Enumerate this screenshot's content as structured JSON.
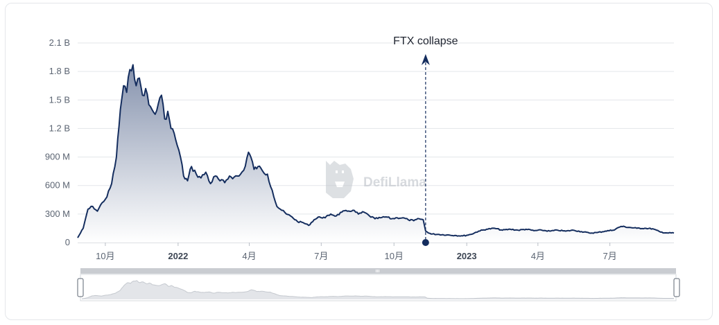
{
  "chart_data": {
    "type": "area",
    "y_ticks": [
      {
        "value": 0,
        "label": "0"
      },
      {
        "value": 300000000,
        "label": "300 M"
      },
      {
        "value": 600000000,
        "label": "600 M"
      },
      {
        "value": 900000000,
        "label": "900 M"
      },
      {
        "value": 1200000000,
        "label": "1.2 B"
      },
      {
        "value": 1500000000,
        "label": "1.5 B"
      },
      {
        "value": 1800000000,
        "label": "1.8 B"
      },
      {
        "value": 2100000000,
        "label": "2.1 B"
      }
    ],
    "x_ticks": [
      {
        "date": "2021-10-01",
        "label": "10月",
        "bold": false
      },
      {
        "date": "2022-01-01",
        "label": "2022",
        "bold": true
      },
      {
        "date": "2022-04-01",
        "label": "4月",
        "bold": false
      },
      {
        "date": "2022-07-01",
        "label": "7月",
        "bold": false
      },
      {
        "date": "2022-10-01",
        "label": "10月",
        "bold": false
      },
      {
        "date": "2023-01-01",
        "label": "2023",
        "bold": true
      },
      {
        "date": "2023-04-01",
        "label": "4月",
        "bold": false
      },
      {
        "date": "2023-07-01",
        "label": "7月",
        "bold": false
      }
    ],
    "x_range": [
      "2021-08-27",
      "2023-09-20"
    ],
    "ylim": [
      0,
      2100000000
    ],
    "grid": true,
    "line_color": "#142d5e",
    "fill_top_color": "#8592ad",
    "series": [
      {
        "x": [
          "2021-08-27",
          "2021-09-03",
          "2021-09-09",
          "2021-09-15",
          "2021-09-21",
          "2021-09-27",
          "2021-10-03",
          "2021-10-09",
          "2021-10-15",
          "2021-10-20",
          "2021-10-24",
          "2021-10-28",
          "2021-11-01",
          "2021-11-05",
          "2021-11-09",
          "2021-11-13",
          "2021-11-17",
          "2021-11-21",
          "2021-11-25",
          "2021-11-29",
          "2021-12-03",
          "2021-12-07",
          "2021-12-11",
          "2021-12-15",
          "2021-12-19",
          "2021-12-23",
          "2021-12-27",
          "2021-12-31",
          "2022-01-04",
          "2022-01-08",
          "2022-01-13",
          "2022-01-18",
          "2022-01-24",
          "2022-01-30",
          "2022-02-05",
          "2022-02-11",
          "2022-02-17",
          "2022-02-23",
          "2022-03-01",
          "2022-03-07",
          "2022-03-13",
          "2022-03-19",
          "2022-03-25",
          "2022-03-31",
          "2022-04-03",
          "2022-04-07",
          "2022-04-12",
          "2022-04-18",
          "2022-04-24",
          "2022-04-30",
          "2022-05-06",
          "2022-05-12",
          "2022-05-18",
          "2022-05-25",
          "2022-06-01",
          "2022-06-08",
          "2022-06-15",
          "2022-06-22",
          "2022-06-29",
          "2022-07-06",
          "2022-07-13",
          "2022-07-20",
          "2022-07-27",
          "2022-08-03",
          "2022-08-10",
          "2022-08-17",
          "2022-08-24",
          "2022-08-31",
          "2022-09-07",
          "2022-09-14",
          "2022-09-21",
          "2022-09-28",
          "2022-10-05",
          "2022-10-12",
          "2022-10-19",
          "2022-10-26",
          "2022-11-02",
          "2022-11-07",
          "2022-11-10",
          "2022-11-17",
          "2022-11-27",
          "2022-12-07",
          "2022-12-17",
          "2022-12-27",
          "2023-01-06",
          "2023-01-16",
          "2023-01-26",
          "2023-02-05",
          "2023-02-15",
          "2023-02-25",
          "2023-03-07",
          "2023-03-17",
          "2023-03-27",
          "2023-04-06",
          "2023-04-16",
          "2023-04-26",
          "2023-05-06",
          "2023-05-16",
          "2023-05-26",
          "2023-06-05",
          "2023-06-15",
          "2023-06-25",
          "2023-07-05",
          "2023-07-15",
          "2023-07-25",
          "2023-08-04",
          "2023-08-14",
          "2023-08-24",
          "2023-09-03",
          "2023-09-13",
          "2023-09-20"
        ],
        "values": [
          50000000,
          150000000,
          350000000,
          380000000,
          330000000,
          420000000,
          480000000,
          620000000,
          900000000,
          1400000000,
          1650000000,
          1580000000,
          1820000000,
          1870000000,
          1650000000,
          1730000000,
          1550000000,
          1620000000,
          1450000000,
          1400000000,
          1350000000,
          1460000000,
          1550000000,
          1300000000,
          1380000000,
          1200000000,
          1150000000,
          1020000000,
          900000000,
          700000000,
          650000000,
          800000000,
          720000000,
          680000000,
          740000000,
          620000000,
          700000000,
          650000000,
          630000000,
          700000000,
          690000000,
          700000000,
          760000000,
          950000000,
          900000000,
          770000000,
          800000000,
          750000000,
          720000000,
          550000000,
          380000000,
          340000000,
          300000000,
          270000000,
          220000000,
          210000000,
          180000000,
          240000000,
          270000000,
          260000000,
          300000000,
          280000000,
          320000000,
          330000000,
          340000000,
          300000000,
          320000000,
          280000000,
          250000000,
          260000000,
          270000000,
          250000000,
          260000000,
          260000000,
          240000000,
          230000000,
          250000000,
          240000000,
          120000000,
          90000000,
          85000000,
          80000000,
          75000000,
          70000000,
          85000000,
          120000000,
          140000000,
          150000000,
          130000000,
          140000000,
          130000000,
          140000000,
          125000000,
          130000000,
          120000000,
          130000000,
          120000000,
          130000000,
          115000000,
          100000000,
          105000000,
          120000000,
          130000000,
          170000000,
          160000000,
          150000000,
          150000000,
          145000000,
          110000000,
          100000000,
          100000000
        ]
      }
    ],
    "annotations": [
      {
        "text": "FTX collapse",
        "date": "2022-11-10"
      }
    ]
  },
  "watermark": {
    "text": "DefiLlama"
  }
}
